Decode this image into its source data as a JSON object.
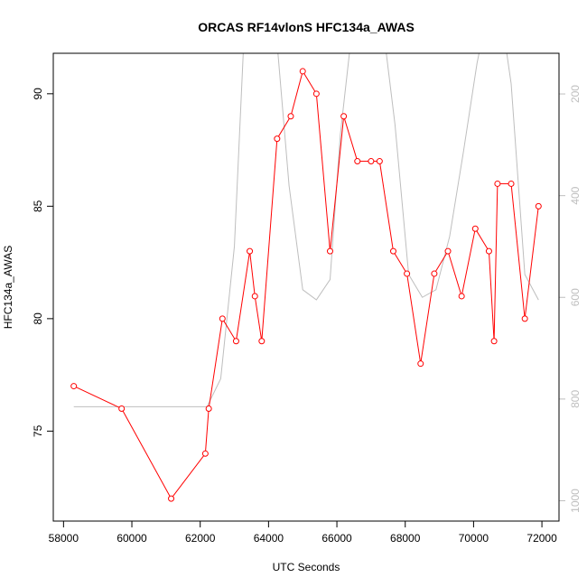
{
  "chart_data": {
    "type": "line",
    "title": "ORCAS RF14vlonS HFC134a_AWAS",
    "xlabel": "UTC Seconds",
    "ylabel": "HFC134a_AWAS",
    "xlim": [
      57700,
      72500
    ],
    "ylim": [
      71,
      91.8
    ],
    "x_ticks": [
      58000,
      60000,
      62000,
      64000,
      66000,
      68000,
      70000,
      72000
    ],
    "y_ticks": [
      75,
      80,
      85,
      90
    ],
    "y2_lim": [
      1040,
      120
    ],
    "y2_ticks": [
      200,
      400,
      600,
      800,
      1000
    ],
    "grid": false,
    "series": [
      {
        "color": "#ff0000",
        "style": "line+open-circles",
        "axis": "left",
        "x": [
          58300,
          59700,
          61150,
          62150,
          62250,
          62650,
          63050,
          63450,
          63600,
          63800,
          64250,
          64650,
          65000,
          65400,
          65800,
          66200,
          66600,
          67000,
          67250,
          67650,
          68050,
          68450,
          68850,
          69250,
          69650,
          70050,
          70450,
          70600,
          70700,
          71100,
          71500,
          71900
        ],
        "y": [
          77,
          76,
          72,
          74,
          76,
          80,
          79,
          83,
          81,
          79,
          88,
          89,
          91,
          90,
          83,
          89,
          87,
          87,
          87,
          83,
          82,
          78,
          82,
          83,
          81,
          84,
          83,
          79,
          86,
          86,
          80,
          85
        ]
      },
      {
        "color": "#bebebe",
        "style": "line",
        "axis": "right",
        "x": [
          58300,
          62200,
          62600,
          63000,
          63300,
          63800,
          64200,
          64600,
          65000,
          65400,
          65800,
          66100,
          66500,
          66900,
          67300,
          67700,
          68100,
          68500,
          68900,
          69300,
          69700,
          70100,
          70400,
          70800,
          71100,
          71500,
          71900
        ],
        "y": [
          815,
          815,
          760,
          500,
          60,
          60,
          60,
          380,
          585,
          605,
          565,
          280,
          40,
          40,
          40,
          260,
          555,
          600,
          585,
          480,
          315,
          140,
          40,
          40,
          180,
          555,
          605
        ]
      }
    ]
  }
}
